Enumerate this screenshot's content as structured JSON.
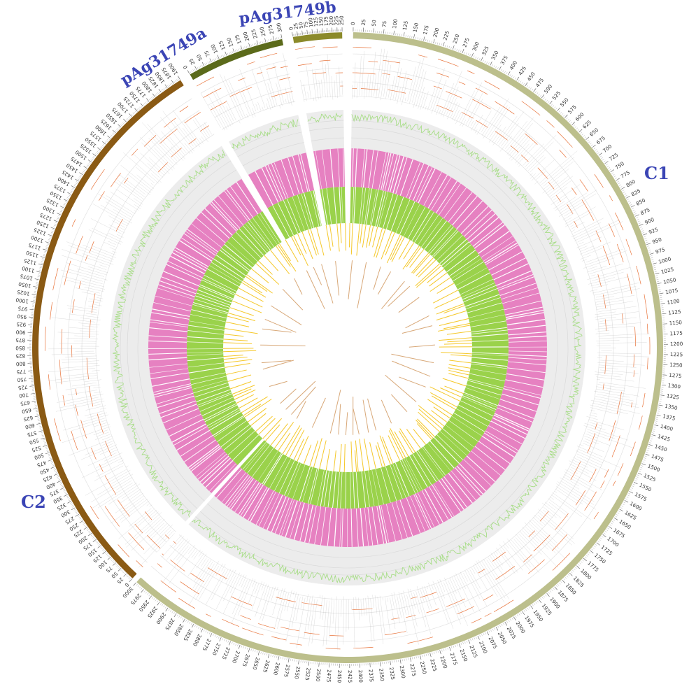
{
  "figure": {
    "type": "circos genome map",
    "colors": {
      "ideogram_C1": "#bcbf8c",
      "ideogram_C2": "#8a5a14",
      "ideogram_pAg31749a": "#5b6a1a",
      "ideogram_pAg31749b": "#8b8a2a",
      "label": "#3b45b5",
      "gc_skew_line": "#a8dd88",
      "track_bg": "#ececec",
      "cds_plus": "#e681c1",
      "cds_minus": "#9ad24b",
      "rna_genes": "#f5c82a",
      "inner_links": "#d8a878",
      "annotation_lines": "#e8733a"
    }
  },
  "chromosomes": [
    {
      "id": "C1",
      "label": "C1",
      "tick_max": 3000,
      "tick_step": 25,
      "label_step": 25
    },
    {
      "id": "C2",
      "label": "C2",
      "tick_max": 1900,
      "tick_step": 25,
      "label_step": 25
    },
    {
      "id": "pAg31749a",
      "label": "pAg31749a",
      "tick_max": 300,
      "tick_step": 25,
      "label_step": 25
    },
    {
      "id": "pAg31749b",
      "label": "pAg31749b",
      "tick_max": 250,
      "tick_step": 25,
      "label_step": 25
    }
  ]
}
